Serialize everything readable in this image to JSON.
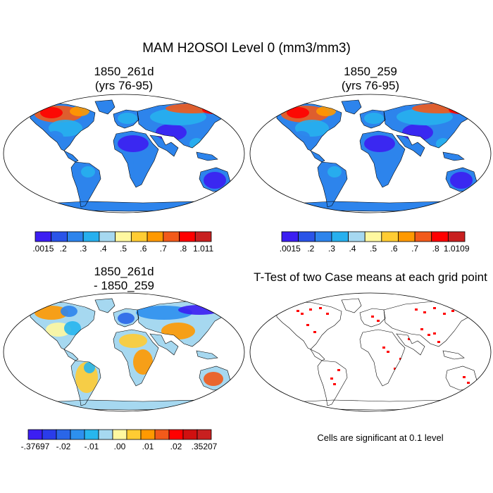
{
  "figure": {
    "title": "MAM H2OSOI Level 0 (mm3/mm3)"
  },
  "panels": [
    {
      "id": "case1",
      "title_line1": "1850_261d",
      "title_line2": "(yrs 76-95)",
      "field": "soil water volumetric content, level 0",
      "colorbar": {
        "labels": [
          ".0015",
          ".2",
          ".3",
          ".4",
          ".5",
          ".6",
          ".7",
          ".8",
          "1.011"
        ],
        "colors": [
          "#3c1ef2",
          "#2a54e8",
          "#2d84ec",
          "#27b0ee",
          "#a6d8f0",
          "#fff8a0",
          "#ffcc33",
          "#ff9900",
          "#f25a1a",
          "#ff0000",
          "#c82020"
        ]
      }
    },
    {
      "id": "case2",
      "title_line1": "1850_259",
      "title_line2": "(yrs 76-95)",
      "field": "soil water volumetric content, level 0",
      "colorbar": {
        "labels": [
          ".0015",
          ".2",
          ".3",
          ".4",
          ".5",
          ".6",
          ".7",
          ".8",
          "1.0109"
        ],
        "colors": [
          "#3c1ef2",
          "#2a54e8",
          "#2d84ec",
          "#27b0ee",
          "#a6d8f0",
          "#fff8a0",
          "#ffcc33",
          "#ff9900",
          "#f25a1a",
          "#ff0000",
          "#c82020"
        ]
      }
    },
    {
      "id": "difference",
      "title_line1": "1850_261d",
      "title_line2": "- 1850_259",
      "field": "difference of case means",
      "colorbar": {
        "labels": [
          "-.37697",
          "-.02",
          "-.01",
          ".00",
          ".01",
          ".02",
          ".35207"
        ],
        "colors": [
          "#3c1ef2",
          "#2a3cea",
          "#2a66e8",
          "#2d90ee",
          "#27b6ee",
          "#a6d8f0",
          "#fff8a0",
          "#ffcc33",
          "#ff9900",
          "#f25a1a",
          "#ff0000",
          "#d01010",
          "#c82020"
        ]
      }
    },
    {
      "id": "ttest",
      "title": "T-Test of two Case means at each grid point",
      "note": "Cells are significant at 0.1 level",
      "significant_color": "#ff0000"
    }
  ],
  "colors": {
    "land_outline": "#000000",
    "ocean": "#ffffff",
    "significant": "#ff0000"
  }
}
